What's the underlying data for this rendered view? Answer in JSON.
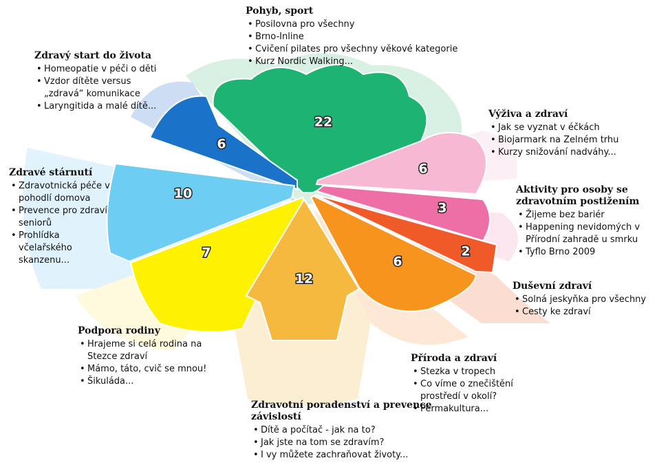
{
  "sections": [
    {
      "title": "Pohyb, sport",
      "count": "22",
      "items": [
        "Posilovna pro všechny",
        "Brno-Inline",
        "Cvičení pilates pro všechny věkové kategorie",
        "Kurz Nordic Walking..."
      ]
    },
    {
      "title": "Výživa a zdraví",
      "count": "6",
      "items": [
        "Jak se vyznat v éčkách",
        "Biojarmark na Zelném trhu",
        "Kurzy snižování nadváhy..."
      ]
    },
    {
      "title": "Aktivity pro osoby se zdravotním postižením",
      "count": "3",
      "items": [
        "Žijeme bez bariér",
        "Happening nevidomých v Přírodní zahradě u smrku",
        "Tyflo Brno 2009"
      ]
    },
    {
      "title": "Duševní zdraví",
      "count": "2",
      "items": [
        "Solná jeskyňka pro všechny",
        "Cesty ke zdraví"
      ]
    },
    {
      "title": "Příroda a zdraví",
      "count": "6",
      "items": [
        "Stezka v tropech",
        "Co víme o znečištění prostředí v okolí?",
        "Permakultura..."
      ]
    },
    {
      "title": "Zdravotní poradenství a prevence závislostí",
      "count": "12",
      "items": [
        "Dítě a počítač - jak na to?",
        "Jak jste na tom se zdravím?",
        "I vy můžete zachraňovat životy..."
      ]
    },
    {
      "title": "Podpora rodiny",
      "count": "7",
      "items": [
        "Hrajeme si celá rodina na Stezce zdraví",
        "Mámo, táto, cvič se mnou!",
        "Šikuláda..."
      ]
    },
    {
      "title": "Zdravé stárnutí",
      "count": "10",
      "items": [
        "Zdravotnická péče v pohodlí domova",
        "Prevence pro zdraví seniorů",
        "Prohlídka včelařského skanzenu..."
      ]
    },
    {
      "title": "Zdravý start do života",
      "count": "6",
      "items": [
        "Homeopatie v péči o děti",
        "Vzdor dítěte versus „zdravá“ komunikace",
        "Laryngitida a malé dítě..."
      ]
    }
  ]
}
